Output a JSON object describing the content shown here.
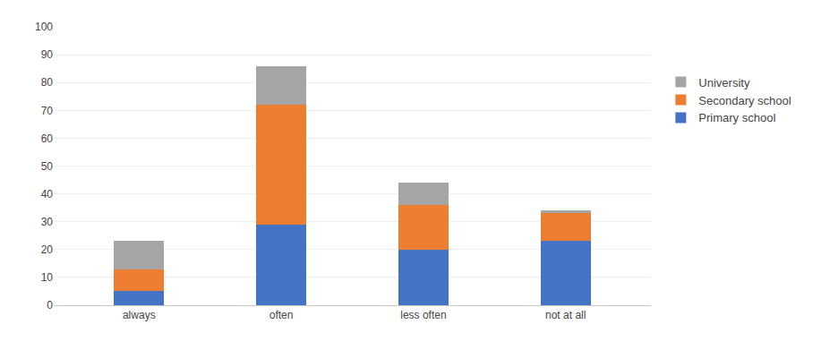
{
  "chart_data": {
    "type": "bar",
    "stacked": true,
    "categories": [
      "always",
      "often",
      "less often",
      "not at all"
    ],
    "series": [
      {
        "name": "Primary school",
        "color": "#4472C4",
        "values": [
          5,
          29,
          20,
          23
        ]
      },
      {
        "name": "Secondary school",
        "color": "#ED7D31",
        "values": [
          8,
          43,
          16,
          10
        ]
      },
      {
        "name": "University",
        "color": "#A5A5A5",
        "values": [
          10,
          14,
          8,
          1
        ]
      }
    ],
    "ylim": [
      0,
      100
    ],
    "yticks": [
      0,
      10,
      20,
      30,
      40,
      50,
      60,
      70,
      80,
      90,
      100
    ],
    "grid": true,
    "legend": "right"
  }
}
